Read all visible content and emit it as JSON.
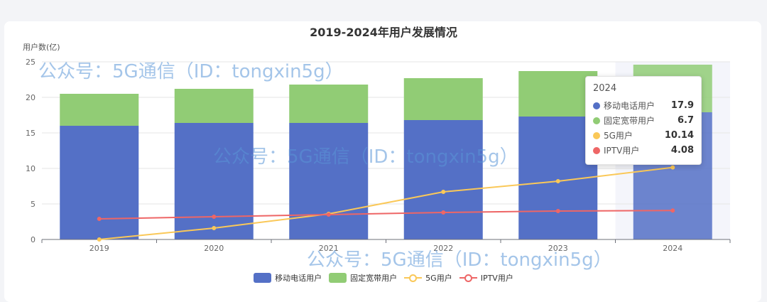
{
  "chart_data": {
    "type": "bar",
    "title": "2019-2024年用户发展情况",
    "ylabel": "用户数(亿)",
    "xlabel": "",
    "ylim": [
      0,
      25
    ],
    "yticks": [
      0,
      5,
      10,
      15,
      20,
      25
    ],
    "categories": [
      "2019",
      "2020",
      "2021",
      "2022",
      "2023",
      "2024"
    ],
    "series": [
      {
        "name": "移动电话用户",
        "type": "bar",
        "stack": "total",
        "color": "#5470c6",
        "values": [
          16.0,
          16.4,
          16.4,
          16.8,
          17.3,
          17.9
        ]
      },
      {
        "name": "固定宽带用户",
        "type": "bar",
        "stack": "total",
        "color": "#91cc75",
        "values": [
          4.5,
          4.8,
          5.4,
          5.9,
          6.4,
          6.7
        ]
      },
      {
        "name": "5G用户",
        "type": "line",
        "color": "#fac858",
        "values": [
          0.0,
          1.6,
          3.6,
          6.7,
          8.2,
          10.14
        ]
      },
      {
        "name": "IPTV用户",
        "type": "line",
        "color": "#ee6666",
        "values": [
          2.9,
          3.2,
          3.5,
          3.8,
          4.0,
          4.08
        ]
      }
    ],
    "grid": true,
    "legend_position": "bottom-center",
    "highlighted_category": "2024"
  },
  "tooltip": {
    "header": "2024",
    "rows": [
      {
        "name": "移动电话用户",
        "value": "17.9",
        "color": "#5470c6"
      },
      {
        "name": "固定宽带用户",
        "value": "6.7",
        "color": "#91cc75"
      },
      {
        "name": "5G用户",
        "value": "10.14",
        "color": "#fac858"
      },
      {
        "name": "IPTV用户",
        "value": "4.08",
        "color": "#ee6666"
      }
    ]
  },
  "watermark": "公众号：5G通信（ID：tongxin5g）"
}
